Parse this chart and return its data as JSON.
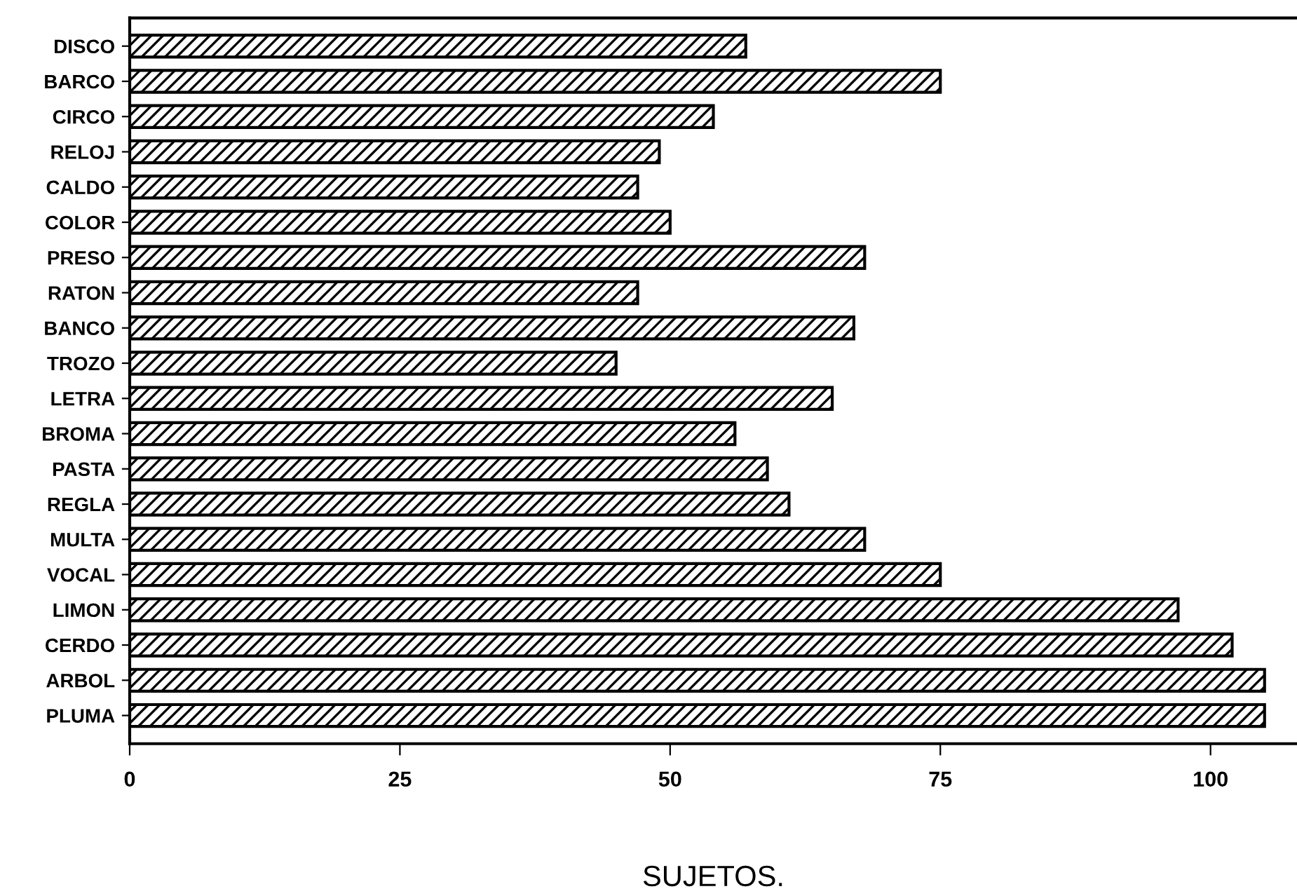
{
  "chart_data": {
    "type": "bar",
    "orientation": "horizontal",
    "xlabel": "SUJETOS.",
    "categories": [
      "DISCO",
      "BARCO",
      "CIRCO",
      "RELOJ",
      "CALDO",
      "COLOR",
      "PRESO",
      "RATON",
      "BANCO",
      "TROZO",
      "LETRA",
      "BROMA",
      "PASTA",
      "REGLA",
      "MULTA",
      "VOCAL",
      "LIMON",
      "CERDO",
      "ARBOL",
      "PLUMA"
    ],
    "values": [
      57,
      75,
      54,
      49,
      47,
      50,
      68,
      47,
      67,
      45,
      65,
      56,
      59,
      61,
      68,
      75,
      97,
      102,
      105,
      105
    ],
    "color": "#000000",
    "xlim": [
      0,
      108
    ],
    "xticks": [
      0,
      25,
      50,
      75,
      100
    ],
    "grid": false,
    "legend": false
  }
}
